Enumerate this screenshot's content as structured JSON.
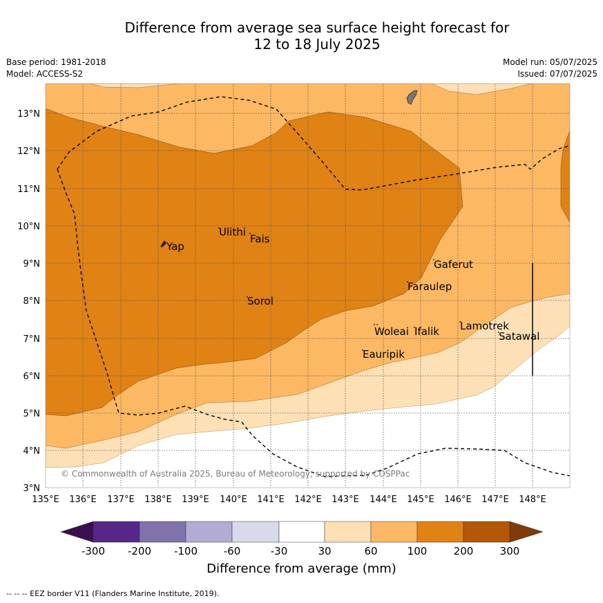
{
  "title_line1": "Difference from average sea surface height forecast for",
  "title_line2": "12 to 18 July 2025",
  "meta_left": {
    "base_period": "Base period: 1981-2018",
    "model": "Model: ACCESS-S2"
  },
  "meta_right": {
    "model_run": "Model run: 05/07/2025",
    "issued": "Issued: 07/07/2025"
  },
  "lon_ticks": [
    "135°E",
    "136°E",
    "137°E",
    "138°E",
    "139°E",
    "140°E",
    "141°E",
    "142°E",
    "143°E",
    "144°E",
    "145°E",
    "146°E",
    "147°E",
    "148°E"
  ],
  "lat_ticks": [
    "3°N",
    "4°N",
    "5°N",
    "6°N",
    "7°N",
    "8°N",
    "9°N",
    "10°N",
    "11°N",
    "12°N",
    "13°N"
  ],
  "islands": [
    {
      "name": "Yap"
    },
    {
      "name": "Ulithi"
    },
    {
      "name": "Fais"
    },
    {
      "name": "Gaferut"
    },
    {
      "name": "Faraulep"
    },
    {
      "name": "Sorol"
    },
    {
      "name": "Woleai"
    },
    {
      "name": "Ifalik"
    },
    {
      "name": "Lamotrek"
    },
    {
      "name": "Satawal"
    },
    {
      "name": "Eauripik"
    }
  ],
  "copyright": "© Commonwealth of Australia 2025, Bureau of Meteorology, supported by COSPPac",
  "colorbar": {
    "title": "Difference from average (mm)",
    "tick_labels": [
      "-300",
      "-200",
      "-100",
      "-60",
      "-30",
      "30",
      "60",
      "100",
      "200",
      "300"
    ],
    "colors": [
      "#3b0f4f",
      "#542788",
      "#8073ac",
      "#b2abd2",
      "#d8daeb",
      "#ffffff",
      "#fee0b6",
      "#fdb863",
      "#e08214",
      "#b35806",
      "#7f3b08"
    ]
  },
  "footnote": "--  --  -- EEZ border V11 (Flanders Marine Institute, 2019)."
}
